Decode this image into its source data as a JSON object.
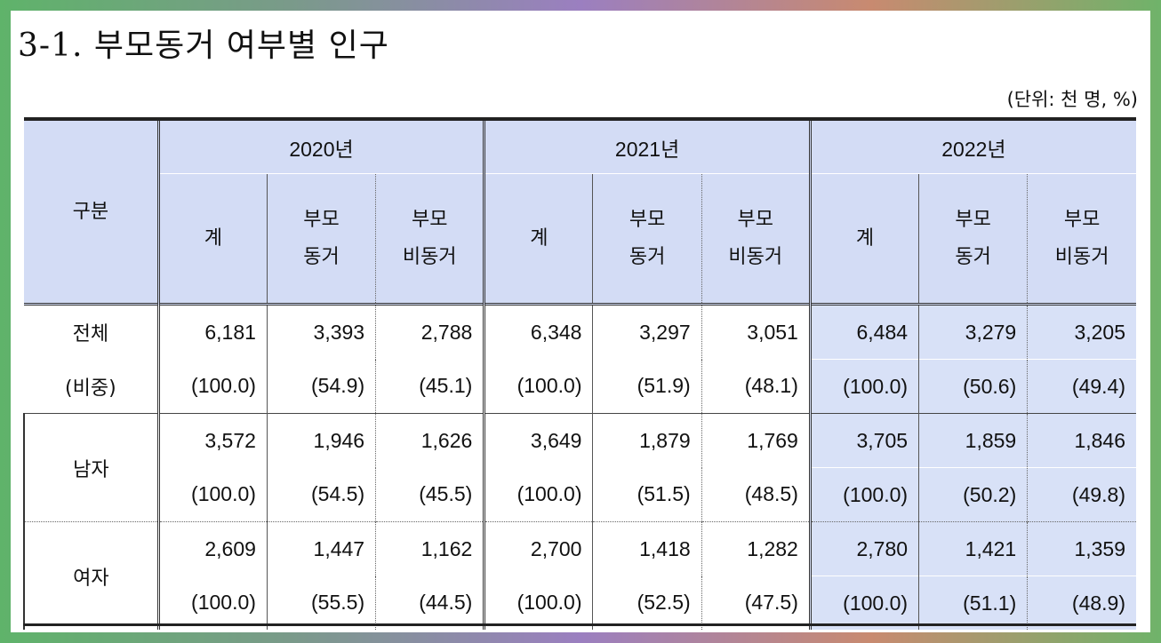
{
  "title": "3-1. 부모동거 여부별 인구",
  "unit": "(단위: 천 명, %)",
  "header": {
    "category": "구분",
    "years": [
      "2020년",
      "2021년",
      "2022년"
    ],
    "sub_total": "계",
    "sub_with_line1": "부모",
    "sub_with_line2": "동거",
    "sub_without_line1": "부모",
    "sub_without_line2": "비동거"
  },
  "rows": {
    "total": {
      "label": "전체",
      "share_label": "(비중)",
      "values": [
        "6,181",
        "3,393",
        "2,788",
        "6,348",
        "3,297",
        "3,051",
        "6,484",
        "3,279",
        "3,205"
      ],
      "shares": [
        "(100.0)",
        "(54.9)",
        "(45.1)",
        "(100.0)",
        "(51.9)",
        "(48.1)",
        "(100.0)",
        "(50.6)",
        "(49.4)"
      ]
    },
    "male": {
      "label": "남자",
      "values": [
        "3,572",
        "1,946",
        "1,626",
        "3,649",
        "1,879",
        "1,769",
        "3,705",
        "1,859",
        "1,846"
      ],
      "shares": [
        "(100.0)",
        "(54.5)",
        "(45.5)",
        "(100.0)",
        "(51.5)",
        "(48.5)",
        "(100.0)",
        "(50.2)",
        "(49.8)"
      ]
    },
    "female": {
      "label": "여자",
      "values": [
        "2,609",
        "1,447",
        "1,162",
        "2,700",
        "1,418",
        "1,282",
        "2,780",
        "1,421",
        "1,359"
      ],
      "shares": [
        "(100.0)",
        "(55.5)",
        "(44.5)",
        "(100.0)",
        "(52.5)",
        "(47.5)",
        "(100.0)",
        "(51.1)",
        "(48.9)"
      ]
    }
  },
  "colors": {
    "header_bg": "#d3dcf5",
    "highlight_bg": "#d8e1f7"
  }
}
